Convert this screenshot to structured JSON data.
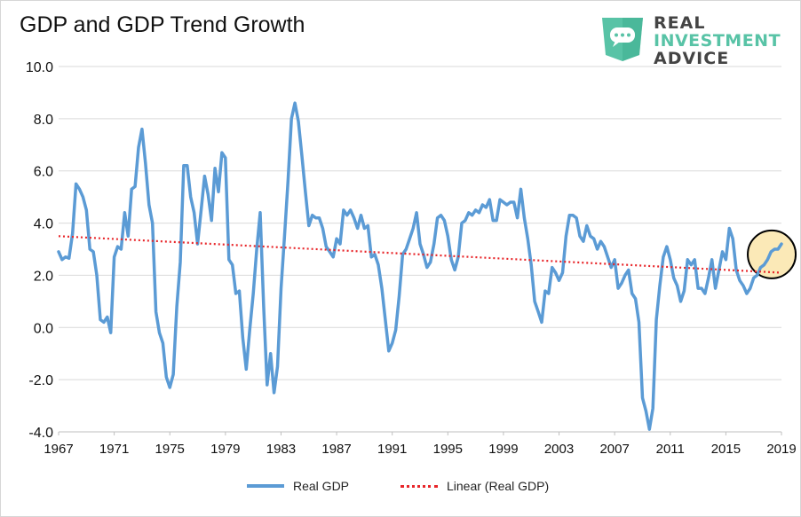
{
  "chart_data": {
    "type": "line",
    "title": "GDP and GDP Trend Growth",
    "xlabel": "",
    "ylabel": "",
    "ylim": [
      -4.0,
      10.0
    ],
    "xlim": [
      1967,
      2019
    ],
    "x_tick_labels": [
      "1967",
      "1971",
      "1975",
      "1979",
      "1983",
      "1987",
      "1991",
      "1995",
      "1999",
      "2003",
      "2007",
      "2011",
      "2015",
      "2019"
    ],
    "y_tick_labels": [
      "10.0",
      "8.0",
      "6.0",
      "4.0",
      "2.0",
      "0.0",
      "-2.0",
      "-4.0"
    ],
    "grid": "horizontal",
    "legend_position": "bottom",
    "series": [
      {
        "name": "Real GDP",
        "color": "#5b9bd5",
        "x": [
          1967.0,
          1967.25,
          1967.5,
          1967.75,
          1968.0,
          1968.25,
          1968.5,
          1968.75,
          1969.0,
          1969.25,
          1969.5,
          1969.75,
          1970.0,
          1970.25,
          1970.5,
          1970.75,
          1971.0,
          1971.25,
          1971.5,
          1971.75,
          1972.0,
          1972.25,
          1972.5,
          1972.75,
          1973.0,
          1973.25,
          1973.5,
          1973.75,
          1974.0,
          1974.25,
          1974.5,
          1974.75,
          1975.0,
          1975.25,
          1975.5,
          1975.75,
          1976.0,
          1976.25,
          1976.5,
          1976.75,
          1977.0,
          1977.25,
          1977.5,
          1977.75,
          1978.0,
          1978.25,
          1978.5,
          1978.75,
          1979.0,
          1979.25,
          1979.5,
          1979.75,
          1980.0,
          1980.25,
          1980.5,
          1980.75,
          1981.0,
          1981.25,
          1981.5,
          1981.75,
          1982.0,
          1982.25,
          1982.5,
          1982.75,
          1983.0,
          1983.25,
          1983.5,
          1983.75,
          1984.0,
          1984.25,
          1984.5,
          1984.75,
          1985.0,
          1985.25,
          1985.5,
          1985.75,
          1986.0,
          1986.25,
          1986.5,
          1986.75,
          1987.0,
          1987.25,
          1987.5,
          1987.75,
          1988.0,
          1988.25,
          1988.5,
          1988.75,
          1989.0,
          1989.25,
          1989.5,
          1989.75,
          1990.0,
          1990.25,
          1990.5,
          1990.75,
          1991.0,
          1991.25,
          1991.5,
          1991.75,
          1992.0,
          1992.25,
          1992.5,
          1992.75,
          1993.0,
          1993.25,
          1993.5,
          1993.75,
          1994.0,
          1994.25,
          1994.5,
          1994.75,
          1995.0,
          1995.25,
          1995.5,
          1995.75,
          1996.0,
          1996.25,
          1996.5,
          1996.75,
          1997.0,
          1997.25,
          1997.5,
          1997.75,
          1998.0,
          1998.25,
          1998.5,
          1998.75,
          1999.0,
          1999.25,
          1999.5,
          1999.75,
          2000.0,
          2000.25,
          2000.5,
          2000.75,
          2001.0,
          2001.25,
          2001.5,
          2001.75,
          2002.0,
          2002.25,
          2002.5,
          2002.75,
          2003.0,
          2003.25,
          2003.5,
          2003.75,
          2004.0,
          2004.25,
          2004.5,
          2004.75,
          2005.0,
          2005.25,
          2005.5,
          2005.75,
          2006.0,
          2006.25,
          2006.5,
          2006.75,
          2007.0,
          2007.25,
          2007.5,
          2007.75,
          2008.0,
          2008.25,
          2008.5,
          2008.75,
          2009.0,
          2009.25,
          2009.5,
          2009.75,
          2010.0,
          2010.25,
          2010.5,
          2010.75,
          2011.0,
          2011.25,
          2011.5,
          2011.75,
          2012.0,
          2012.25,
          2012.5,
          2012.75,
          2013.0,
          2013.25,
          2013.5,
          2013.75,
          2014.0,
          2014.25,
          2014.5,
          2014.75,
          2015.0,
          2015.25,
          2015.5,
          2015.75,
          2016.0,
          2016.25,
          2016.5,
          2016.75,
          2017.0,
          2017.25,
          2017.5,
          2017.75,
          2018.0,
          2018.25,
          2018.5,
          2018.75,
          2019.0
        ],
        "values": [
          2.9,
          2.6,
          2.7,
          2.65,
          3.6,
          5.5,
          5.3,
          5.0,
          4.5,
          3.0,
          2.9,
          2.0,
          0.3,
          0.2,
          0.4,
          -0.2,
          2.7,
          3.1,
          3.0,
          4.4,
          3.5,
          5.3,
          5.4,
          6.9,
          7.6,
          6.3,
          4.7,
          4.0,
          0.6,
          -0.2,
          -0.6,
          -1.9,
          -2.3,
          -1.8,
          0.8,
          2.5,
          6.2,
          6.2,
          5.0,
          4.4,
          3.2,
          4.5,
          5.8,
          5.1,
          4.1,
          6.1,
          5.2,
          6.7,
          6.5,
          2.6,
          2.4,
          1.3,
          1.4,
          -0.4,
          -1.6,
          -0.1,
          1.3,
          3.0,
          4.4,
          0.8,
          -2.2,
          -1.0,
          -2.5,
          -1.5,
          1.5,
          3.5,
          5.6,
          8.0,
          8.6,
          7.9,
          6.6,
          5.2,
          3.9,
          4.3,
          4.2,
          4.2,
          3.8,
          3.1,
          2.9,
          2.7,
          3.4,
          3.2,
          4.5,
          4.3,
          4.5,
          4.2,
          3.8,
          4.3,
          3.8,
          3.9,
          2.7,
          2.8,
          2.4,
          1.5,
          0.3,
          -0.9,
          -0.6,
          -0.1,
          1.2,
          2.8,
          3.0,
          3.4,
          3.8,
          4.4,
          3.2,
          2.8,
          2.3,
          2.5,
          3.2,
          4.2,
          4.3,
          4.1,
          3.5,
          2.6,
          2.2,
          2.7,
          4.0,
          4.1,
          4.4,
          4.3,
          4.5,
          4.4,
          4.7,
          4.6,
          4.9,
          4.1,
          4.1,
          4.9,
          4.8,
          4.7,
          4.8,
          4.8,
          4.2,
          5.3,
          4.2,
          3.4,
          2.4,
          1.0,
          0.6,
          0.2,
          1.4,
          1.3,
          2.3,
          2.1,
          1.8,
          2.1,
          3.5,
          4.3,
          4.3,
          4.2,
          3.5,
          3.3,
          3.9,
          3.5,
          3.4,
          3.0,
          3.3,
          3.1,
          2.7,
          2.3,
          2.6,
          1.5,
          1.7,
          2.0,
          2.2,
          1.3,
          1.1,
          0.2,
          -2.7,
          -3.2,
          -3.9,
          -3.1,
          0.3,
          1.6,
          2.7,
          3.1,
          2.6,
          1.9,
          1.6,
          1.0,
          1.4,
          2.6,
          2.4,
          2.6,
          1.5,
          1.5,
          1.3,
          1.9,
          2.6,
          1.5,
          2.2,
          2.9,
          2.6,
          3.8,
          3.4,
          2.2,
          1.8,
          1.6,
          1.3,
          1.5,
          1.9,
          2.0,
          2.3,
          2.4,
          2.6,
          2.9,
          3.0,
          3.0,
          3.2
        ]
      },
      {
        "name": "Linear (Real GDP)",
        "color": "#e8262a",
        "style": "dotted",
        "x": [
          1967,
          2019
        ],
        "values": [
          3.5,
          2.1
        ]
      }
    ],
    "annotations": [
      {
        "type": "circle-highlight",
        "x": 2018.3,
        "y": 2.8,
        "fill": "#fbe9b7"
      }
    ]
  },
  "logo": {
    "line1": "REAL",
    "line2": "INVESTMENT",
    "line3": "ADVICE",
    "icon": "chat-bubble-icon",
    "shield_color": "#58c3a6"
  },
  "legend": {
    "item1": "Real GDP",
    "item2": "Linear (Real GDP)"
  }
}
